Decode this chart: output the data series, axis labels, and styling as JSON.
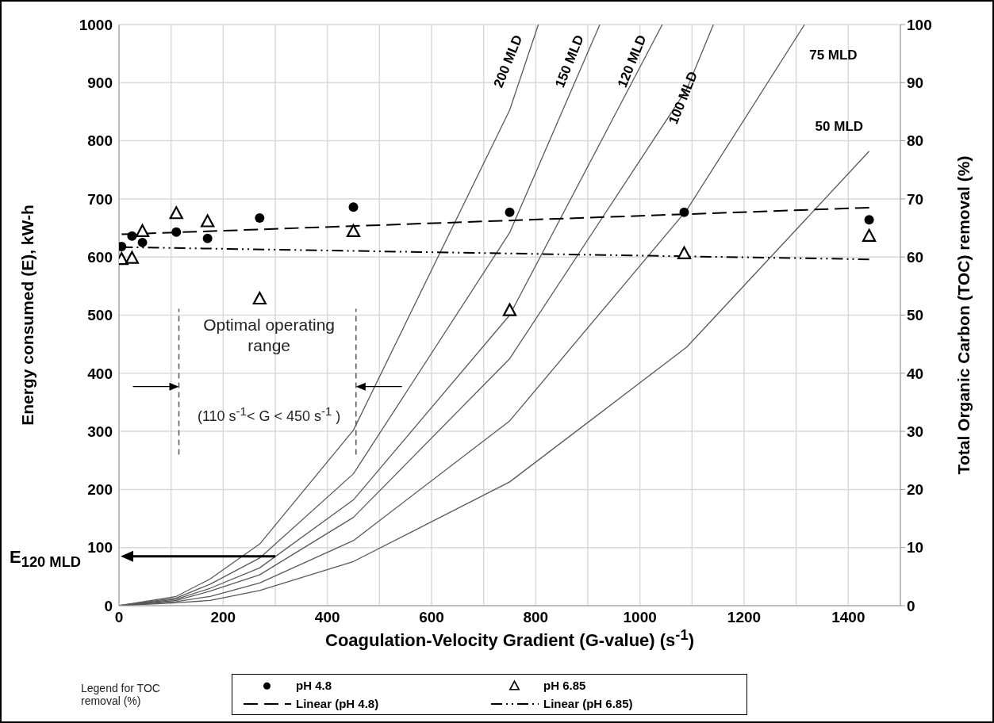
{
  "chart_data": {
    "type": "line",
    "xlabel": "Coagulation-Velocity  Gradient (G-value) (s$^{-1}$)",
    "ylabel": "Energy consumed (E), kW-h",
    "y2label": "Total Organic Carbon (TOC) removal (%)",
    "legend_title": "Legend for TOC removal (%)",
    "legend": "bottom",
    "grid": true,
    "xlim": [
      0,
      1500
    ],
    "xticks": [
      0,
      {
        "value": 100,
        "label": null
      },
      200,
      {
        "value": 300,
        "label": null
      },
      400,
      {
        "value": 500,
        "label": null
      },
      600,
      {
        "value": 700,
        "label": null
      },
      800,
      {
        "value": 900,
        "label": null
      },
      1000,
      {
        "value": 1100,
        "label": null
      },
      1200,
      {
        "value": 1300,
        "label": null
      },
      1400
    ],
    "ylim": [
      0,
      1000
    ],
    "yticks": [
      0,
      100,
      200,
      300,
      400,
      500,
      600,
      700,
      800,
      900,
      1000
    ],
    "y2lim": [
      0,
      100
    ],
    "y2ticks": [
      0,
      10,
      20,
      30,
      40,
      50,
      60,
      70,
      80,
      90,
      100
    ],
    "series": [
      {
        "name": "200 MLD",
        "color": "#595959",
        "line_style": "solid",
        "marker": "none",
        "x": [
          0,
          110,
          175,
          270,
          450,
          750,
          805
        ],
        "values": [
          0,
          16,
          46,
          106,
          302,
          853,
          1000
        ]
      },
      {
        "name": "150 MLD",
        "color": "#595959",
        "line_style": "solid",
        "marker": "none",
        "x": [
          0,
          110,
          175,
          270,
          450,
          750,
          923
        ],
        "values": [
          0,
          13,
          37,
          82,
          227,
          642,
          1000
        ]
      },
      {
        "name": "120 MLD",
        "color": "#595959",
        "line_style": "solid",
        "marker": "none",
        "x": [
          0,
          110,
          175,
          270,
          450,
          750,
          1043
        ],
        "values": [
          0,
          11,
          30,
          65,
          182,
          500,
          1000
        ]
      },
      {
        "name": "100 MLD",
        "color": "#595959",
        "line_style": "solid",
        "marker": "none",
        "x": [
          0,
          110,
          175,
          270,
          450,
          750,
          1090,
          1141
        ],
        "values": [
          0,
          9,
          25,
          53,
          152,
          425,
          889,
          1000
        ]
      },
      {
        "name": "75 MLD",
        "color": "#595959",
        "line_style": "solid",
        "marker": "none",
        "x": [
          0,
          110,
          175,
          270,
          450,
          750,
          1090,
          1316
        ],
        "values": [
          0,
          7,
          16,
          39,
          112,
          318,
          681,
          1000
        ]
      },
      {
        "name": "50 MLD",
        "color": "#595959",
        "line_style": "solid",
        "marker": "none",
        "x": [
          0,
          110,
          175,
          270,
          450,
          750,
          1090,
          1440
        ],
        "values": [
          0,
          5,
          9,
          26,
          76,
          213,
          445,
          782
        ]
      },
      {
        "name": "pH 4.8",
        "type": "scatter",
        "axis": "y2",
        "color": "#000000",
        "marker": "circle",
        "x": [
          5,
          25,
          45,
          110,
          170,
          270,
          450,
          750,
          1085,
          1440
        ],
        "values": [
          61.8,
          63.6,
          62.5,
          64.3,
          63.2,
          66.7,
          68.6,
          67.7,
          67.7,
          66.4
        ]
      },
      {
        "name": "pH 6.85",
        "type": "scatter",
        "axis": "y2",
        "color": "#000000",
        "marker": "triangle",
        "x": [
          5,
          25,
          45,
          110,
          170,
          270,
          450,
          750,
          1085,
          1440
        ],
        "values": [
          59.6,
          59.8,
          64.4,
          67.5,
          66.1,
          52.8,
          64.4,
          50.8,
          60.6,
          63.6
        ]
      },
      {
        "name": "Linear (pH 4.8)",
        "axis": "y2",
        "color": "#000000",
        "line_style": "dashed",
        "marker": "none",
        "x": [
          5,
          1440
        ],
        "values": [
          63.9,
          68.5
        ]
      },
      {
        "name": "Linear (pH 6.85)",
        "axis": "y2",
        "color": "#000000",
        "line_style": "dotted",
        "marker": "none",
        "x": [
          5,
          1440
        ],
        "values": [
          61.7,
          59.6
        ]
      }
    ],
    "ref_lines": [
      {
        "axis": "x",
        "value": 115,
        "color": "#555555",
        "line_style": "dashed"
      },
      {
        "axis": "x",
        "value": 455,
        "color": "#555555",
        "line_style": "dashed"
      }
    ],
    "annotations": [
      "Optimal operating range",
      "(110 s$^{-1}$< G < 450 s$^{-1}$ )",
      "E$_{120 MLD}$"
    ]
  }
}
